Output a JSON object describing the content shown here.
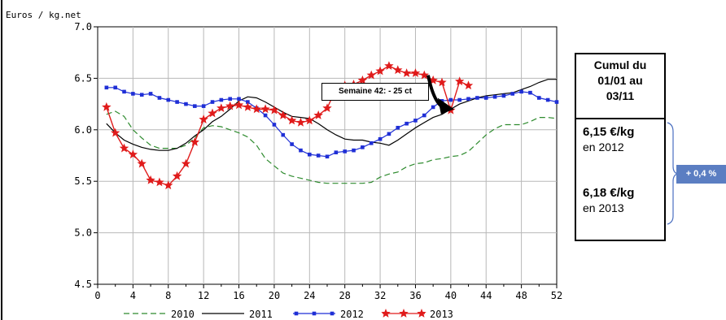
{
  "chart_data": {
    "type": "line",
    "title": "",
    "ylabel": "Euros / kg.net",
    "xlabel": "",
    "xlim": [
      0,
      52
    ],
    "ylim": [
      4.5,
      7.0
    ],
    "x_ticks": [
      "0",
      "4",
      "8",
      "12",
      "16",
      "20",
      "24",
      "28",
      "32",
      "36",
      "40",
      "44",
      "48",
      "52"
    ],
    "x_tick_values": [
      0,
      4,
      8,
      12,
      16,
      20,
      24,
      28,
      32,
      36,
      40,
      44,
      48,
      52
    ],
    "x_minor_ticks": [
      2,
      6,
      10,
      14,
      18,
      22,
      26,
      30,
      34,
      38,
      42,
      46,
      50
    ],
    "y_ticks": [
      "4.5",
      "5.0",
      "5.5",
      "6.0",
      "6.5",
      "7.0"
    ],
    "y_tick_values": [
      4.5,
      5.0,
      5.5,
      6.0,
      6.5,
      7.0
    ],
    "grid": true,
    "legend_position": "bottom",
    "series": [
      {
        "name": "2010",
        "color": "#2e8b2e",
        "style": "dashed",
        "x": [
          1,
          2,
          3,
          4,
          5,
          6,
          7,
          8,
          9,
          10,
          11,
          12,
          13,
          14,
          15,
          16,
          17,
          18,
          19,
          20,
          21,
          22,
          23,
          24,
          25,
          26,
          27,
          28,
          29,
          30,
          31,
          32,
          33,
          34,
          35,
          36,
          37,
          38,
          39,
          40,
          41,
          42,
          43,
          44,
          45,
          46,
          47,
          48,
          49,
          50,
          51,
          52
        ],
        "y": [
          6.15,
          6.18,
          6.13,
          6.0,
          5.92,
          5.85,
          5.82,
          5.82,
          5.82,
          5.85,
          5.92,
          6.02,
          6.04,
          6.03,
          6.0,
          5.97,
          5.93,
          5.85,
          5.72,
          5.65,
          5.58,
          5.55,
          5.53,
          5.51,
          5.49,
          5.48,
          5.48,
          5.48,
          5.48,
          5.48,
          5.49,
          5.54,
          5.57,
          5.59,
          5.64,
          5.67,
          5.68,
          5.71,
          5.72,
          5.74,
          5.75,
          5.79,
          5.87,
          5.95,
          6.01,
          6.05,
          6.05,
          6.05,
          6.08,
          6.12,
          6.12,
          6.11
        ]
      },
      {
        "name": "2011",
        "color": "#000000",
        "style": "solid",
        "x": [
          1,
          2,
          3,
          4,
          5,
          6,
          7,
          8,
          9,
          10,
          11,
          12,
          13,
          14,
          15,
          16,
          17,
          18,
          19,
          20,
          21,
          22,
          23,
          24,
          25,
          26,
          27,
          28,
          29,
          30,
          31,
          32,
          33,
          34,
          35,
          36,
          37,
          38,
          39,
          40,
          41,
          42,
          43,
          44,
          45,
          46,
          47,
          48,
          49,
          50,
          51,
          52
        ],
        "y": [
          6.06,
          5.97,
          5.9,
          5.86,
          5.83,
          5.81,
          5.8,
          5.8,
          5.82,
          5.87,
          5.94,
          6.0,
          6.08,
          6.13,
          6.2,
          6.28,
          6.32,
          6.31,
          6.27,
          6.22,
          6.17,
          6.13,
          6.12,
          6.11,
          6.06,
          6.0,
          5.95,
          5.91,
          5.9,
          5.9,
          5.88,
          5.87,
          5.85,
          5.9,
          5.96,
          6.02,
          6.07,
          6.12,
          6.15,
          6.2,
          6.25,
          6.28,
          6.31,
          6.33,
          6.34,
          6.35,
          6.36,
          6.39,
          6.42,
          6.46,
          6.49,
          6.49
        ]
      },
      {
        "name": "2012",
        "color": "#1f2fd6",
        "style": "solid-square-markers",
        "x": [
          1,
          2,
          3,
          4,
          5,
          6,
          7,
          8,
          9,
          10,
          11,
          12,
          13,
          14,
          15,
          16,
          17,
          18,
          19,
          20,
          21,
          22,
          23,
          24,
          25,
          26,
          27,
          28,
          29,
          30,
          31,
          32,
          33,
          34,
          35,
          36,
          37,
          38,
          39,
          40,
          41,
          42,
          43,
          44,
          45,
          46,
          47,
          48,
          49,
          50,
          51,
          52
        ],
        "y": [
          6.41,
          6.41,
          6.37,
          6.35,
          6.34,
          6.35,
          6.31,
          6.29,
          6.27,
          6.25,
          6.23,
          6.23,
          6.27,
          6.29,
          6.3,
          6.3,
          6.27,
          6.21,
          6.14,
          6.05,
          5.95,
          5.86,
          5.8,
          5.76,
          5.75,
          5.74,
          5.78,
          5.79,
          5.8,
          5.83,
          5.87,
          5.91,
          5.96,
          6.02,
          6.06,
          6.09,
          6.14,
          6.22,
          6.28,
          6.29,
          6.29,
          6.3,
          6.31,
          6.31,
          6.32,
          6.33,
          6.35,
          6.37,
          6.36,
          6.31,
          6.29,
          6.27
        ]
      },
      {
        "name": "2013",
        "color": "#e01b1b",
        "style": "solid-star-markers",
        "x": [
          1,
          2,
          3,
          4,
          5,
          6,
          7,
          8,
          9,
          10,
          11,
          12,
          13,
          14,
          15,
          16,
          17,
          18,
          19,
          20,
          21,
          22,
          23,
          24,
          25,
          26,
          27,
          28,
          29,
          30,
          31,
          32,
          33,
          34,
          35,
          36,
          37,
          38,
          39,
          40,
          41,
          42
        ],
        "y": [
          6.22,
          5.97,
          5.82,
          5.76,
          5.67,
          5.51,
          5.49,
          5.46,
          5.55,
          5.67,
          5.88,
          6.1,
          6.16,
          6.21,
          6.23,
          6.24,
          6.22,
          6.2,
          6.2,
          6.19,
          6.14,
          6.09,
          6.07,
          6.09,
          6.14,
          6.21,
          6.4,
          6.43,
          6.44,
          6.48,
          6.53,
          6.57,
          6.62,
          6.58,
          6.55,
          6.55,
          6.53,
          6.48,
          6.46,
          6.19,
          6.47,
          6.43
        ]
      }
    ],
    "annotations": {
      "week_callout": "Semaine 42: - 25 ct"
    }
  },
  "cumul_box": {
    "header": "Cumul du 01/01 au 03/11",
    "header_lines": [
      "Cumul du",
      "01/01 au",
      "03/11"
    ],
    "value_2012": "6,15 €/kg",
    "year_2012": "en 2012",
    "value_2013": "6,18 €/kg",
    "year_2013": "en 2013"
  },
  "variation_badge": "+ 0,4 %"
}
